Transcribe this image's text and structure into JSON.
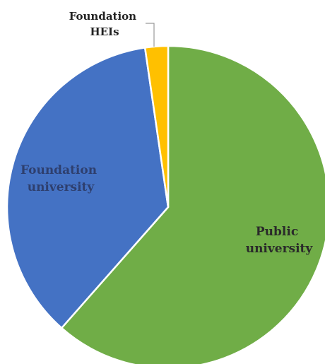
{
  "chart_data": {
    "type": "pie",
    "title": "",
    "slices": [
      {
        "label_lines": [
          "Public",
          "university"
        ],
        "value": 61.5,
        "color": "#70ad47",
        "label_color": "#2a2a2a"
      },
      {
        "label_lines": [
          "Foundation",
          "university"
        ],
        "value": 36.2,
        "color": "#4472c4",
        "label_color": "#2e3f6e"
      },
      {
        "label_lines": [
          "Foundation",
          "HEIs"
        ],
        "value": 2.3,
        "color": "#ffc000",
        "label_color": "#222222"
      }
    ],
    "legend": "none",
    "start_angle": "12 o'clock",
    "direction": "clockwise"
  }
}
